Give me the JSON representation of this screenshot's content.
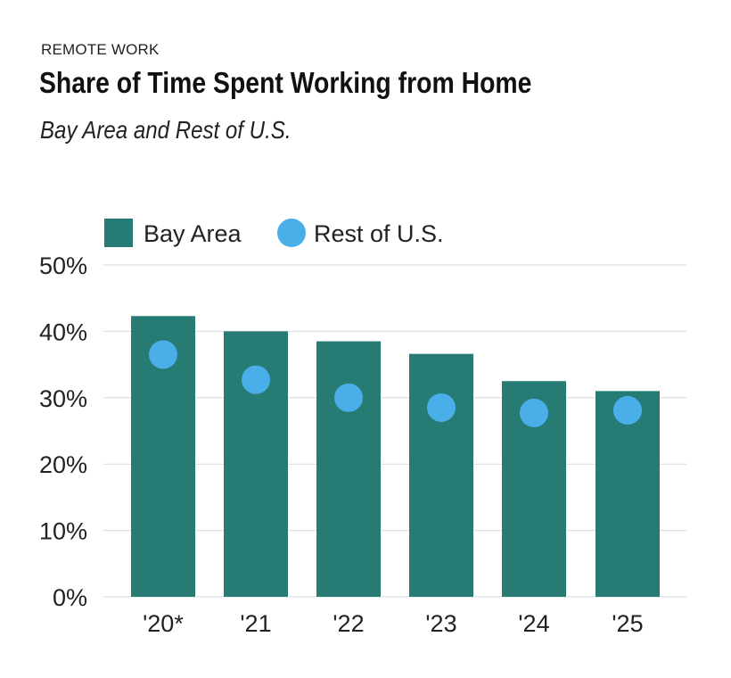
{
  "header": {
    "kicker": "REMOTE WORK",
    "title": "Share of Time Spent Working from Home",
    "subtitle": "Bay Area and Rest of U.S."
  },
  "colors": {
    "bar": "#267b74",
    "dot": "#4aaee9",
    "grid": "#d9d9d9"
  },
  "chart_data": {
    "type": "bar",
    "categories": [
      "'20*",
      "'21",
      "'22",
      "'23",
      "'24",
      "'25"
    ],
    "series": [
      {
        "name": "Bay Area",
        "type": "bar",
        "values": [
          42.3,
          40.0,
          38.5,
          36.6,
          32.5,
          31.0
        ]
      },
      {
        "name": "Rest of U.S.",
        "type": "scatter",
        "values": [
          36.5,
          32.7,
          30.0,
          28.5,
          27.7,
          28.1
        ]
      }
    ],
    "yticks": [
      "0%",
      "10%",
      "20%",
      "30%",
      "40%",
      "50%"
    ],
    "ylim": [
      0,
      50
    ],
    "grid": true,
    "legend_position": "top-left"
  }
}
